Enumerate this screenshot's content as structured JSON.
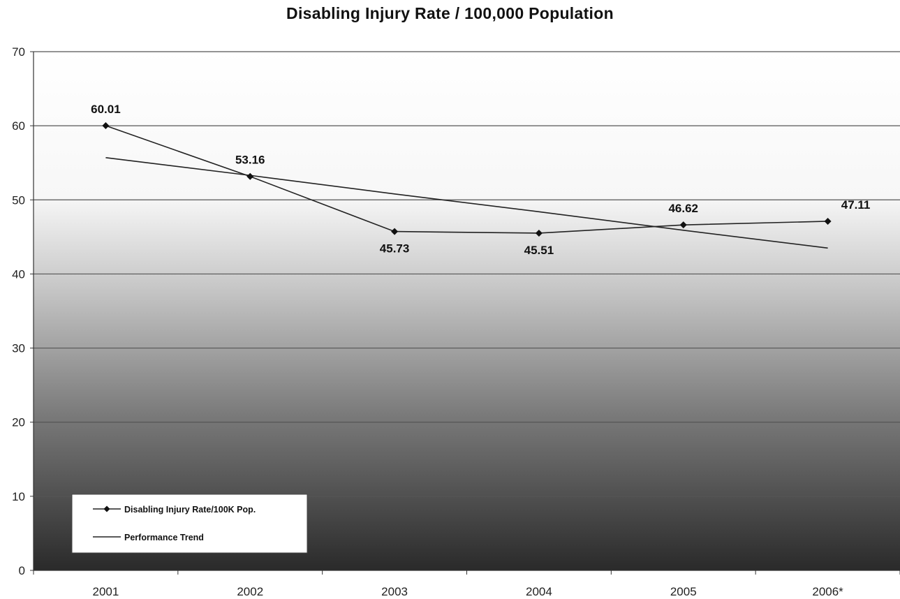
{
  "chart_data": {
    "type": "line",
    "title": "Disabling Injury Rate / 100,000 Population",
    "xlabel": "",
    "ylabel": "",
    "categories": [
      "2001",
      "2002",
      "2003",
      "2004",
      "2005",
      "2006*"
    ],
    "ylim": [
      0,
      70
    ],
    "yticks": [
      0,
      10,
      20,
      30,
      40,
      50,
      60,
      70
    ],
    "grid": true,
    "legend": "bottom-left",
    "series": [
      {
        "name": "Disabling Injury Rate/100K Pop.",
        "marker": "diamond",
        "values": [
          60.01,
          53.16,
          45.73,
          45.51,
          46.62,
          47.11
        ],
        "labels": [
          "60.01",
          "53.16",
          "45.73",
          "45.51",
          "46.62",
          "47.11"
        ]
      },
      {
        "name": "Performance Trend",
        "marker": "none",
        "values": [
          55.7,
          53.3,
          50.8,
          48.4,
          45.9,
          43.5
        ]
      }
    ],
    "colors": {
      "line": "#222222",
      "grid": "#555555",
      "legend_bg": "#ffffff"
    }
  }
}
